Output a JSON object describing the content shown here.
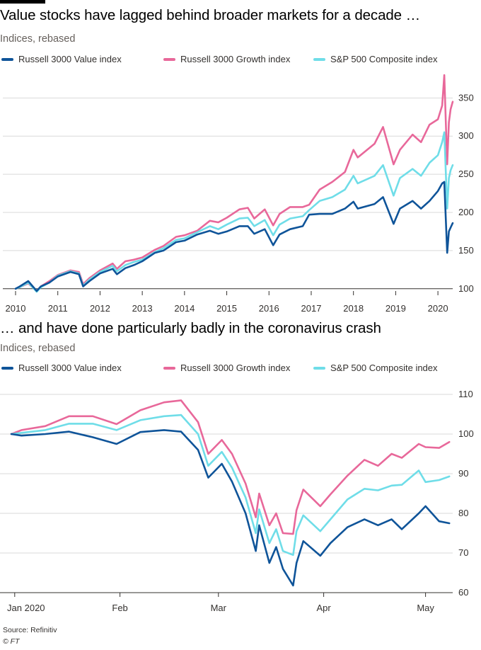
{
  "colors": {
    "value": "#0f5499",
    "growth": "#e8689a",
    "sp500": "#6fdde8",
    "grid": "#d9d9d9",
    "axis": "#33302e"
  },
  "chart_data": [
    {
      "type": "line",
      "title": "Value stocks have lagged behind broader markets for a decade …",
      "subtitle": "Indices, rebased",
      "x_axis_type": "year",
      "x_ticks": [
        "2010",
        "2011",
        "2012",
        "2013",
        "2014",
        "2015",
        "2016",
        "2017",
        "2018",
        "2019",
        "2020"
      ],
      "xlim": [
        2010.0,
        2020.35
      ],
      "ylim": [
        97,
        380
      ],
      "y_ticks": [
        100,
        150,
        200,
        250,
        300,
        350
      ],
      "y_axis_side": "right",
      "grid": true,
      "legend_position": "top",
      "series": [
        {
          "name": "Russell 3000 Value index",
          "color_key": "value",
          "x": [
            2010.0,
            2010.1,
            2010.3,
            2010.5,
            2010.6,
            2010.8,
            2011.0,
            2011.3,
            2011.5,
            2011.6,
            2011.75,
            2012.0,
            2012.3,
            2012.4,
            2012.6,
            2012.8,
            2013.0,
            2013.3,
            2013.5,
            2013.8,
            2014.0,
            2014.3,
            2014.6,
            2014.8,
            2015.0,
            2015.3,
            2015.5,
            2015.65,
            2015.9,
            2016.1,
            2016.25,
            2016.5,
            2016.8,
            2016.95,
            2017.2,
            2017.5,
            2017.8,
            2018.0,
            2018.1,
            2018.5,
            2018.7,
            2018.95,
            2019.1,
            2019.4,
            2019.6,
            2019.8,
            2020.0,
            2020.1,
            2020.15,
            2020.22,
            2020.26,
            2020.3,
            2020.35
          ],
          "values": [
            100,
            103,
            110,
            97,
            103,
            108,
            116,
            122,
            119,
            103,
            110,
            120,
            126,
            119,
            127,
            131,
            136,
            147,
            150,
            161,
            163,
            171,
            176,
            172,
            175,
            182,
            182,
            172,
            178,
            157,
            171,
            178,
            182,
            197,
            198,
            198,
            205,
            214,
            205,
            211,
            220,
            185,
            205,
            215,
            205,
            215,
            228,
            238,
            240,
            147,
            175,
            180,
            186
          ]
        },
        {
          "name": "Russell 3000 Growth index",
          "color_key": "growth",
          "x": [
            2010.0,
            2010.1,
            2010.3,
            2010.5,
            2010.6,
            2010.8,
            2011.0,
            2011.3,
            2011.5,
            2011.6,
            2011.75,
            2012.0,
            2012.3,
            2012.4,
            2012.6,
            2012.8,
            2013.0,
            2013.3,
            2013.5,
            2013.8,
            2014.0,
            2014.3,
            2014.6,
            2014.8,
            2015.0,
            2015.3,
            2015.5,
            2015.65,
            2015.9,
            2016.1,
            2016.25,
            2016.5,
            2016.8,
            2016.95,
            2017.2,
            2017.5,
            2017.8,
            2018.0,
            2018.1,
            2018.5,
            2018.7,
            2018.95,
            2019.1,
            2019.4,
            2019.6,
            2019.8,
            2020.0,
            2020.1,
            2020.15,
            2020.22,
            2020.26,
            2020.3,
            2020.35
          ],
          "values": [
            100,
            102,
            107,
            97,
            103,
            110,
            118,
            124,
            122,
            106,
            114,
            124,
            133,
            126,
            136,
            138,
            141,
            151,
            156,
            168,
            170,
            176,
            189,
            187,
            193,
            204,
            206,
            192,
            204,
            183,
            198,
            207,
            207,
            210,
            230,
            240,
            253,
            282,
            272,
            290,
            312,
            263,
            282,
            302,
            292,
            315,
            322,
            340,
            380,
            263,
            318,
            335,
            345
          ]
        },
        {
          "name": "S&P 500 Composite index",
          "color_key": "sp500",
          "x": [
            2010.0,
            2010.1,
            2010.3,
            2010.5,
            2010.6,
            2010.8,
            2011.0,
            2011.3,
            2011.5,
            2011.6,
            2011.75,
            2012.0,
            2012.3,
            2012.4,
            2012.6,
            2012.8,
            2013.0,
            2013.3,
            2013.5,
            2013.8,
            2014.0,
            2014.3,
            2014.6,
            2014.8,
            2015.0,
            2015.3,
            2015.5,
            2015.65,
            2015.9,
            2016.1,
            2016.25,
            2016.5,
            2016.8,
            2016.95,
            2017.2,
            2017.5,
            2017.8,
            2018.0,
            2018.1,
            2018.5,
            2018.7,
            2018.95,
            2019.1,
            2019.4,
            2019.6,
            2019.8,
            2020.0,
            2020.1,
            2020.15,
            2020.22,
            2020.26,
            2020.3,
            2020.35
          ],
          "values": [
            100,
            102,
            108,
            96,
            102,
            108,
            117,
            123,
            120,
            104,
            112,
            122,
            130,
            123,
            131,
            135,
            138,
            148,
            153,
            164,
            166,
            174,
            182,
            178,
            184,
            192,
            193,
            182,
            190,
            170,
            184,
            192,
            195,
            203,
            215,
            220,
            230,
            248,
            238,
            248,
            262,
            222,
            245,
            257,
            248,
            265,
            275,
            292,
            305,
            205,
            245,
            255,
            262
          ]
        }
      ]
    },
    {
      "type": "line",
      "title": "… and have done particularly badly in the coronavirus crash",
      "subtitle": "Indices, rebased",
      "x_axis_type": "date",
      "x_ticks": [
        "Jan 2020",
        "Feb",
        "Mar",
        "Apr",
        "May"
      ],
      "x_tick_dates": [
        "2020-01-01",
        "2020-02-01",
        "2020-03-01",
        "2020-04-01",
        "2020-05-01"
      ],
      "xlim": [
        "2019-12-31",
        "2020-05-09"
      ],
      "ylim": [
        60,
        110
      ],
      "y_ticks": [
        60,
        70,
        80,
        90,
        100,
        110
      ],
      "y_axis_side": "right",
      "grid": true,
      "legend_position": "top",
      "series": [
        {
          "name": "Russell 3000 Value index",
          "color_key": "value",
          "x": [
            "2019-12-31",
            "2020-01-03",
            "2020-01-10",
            "2020-01-17",
            "2020-01-24",
            "2020-01-31",
            "2020-02-07",
            "2020-02-14",
            "2020-02-19",
            "2020-02-24",
            "2020-02-27",
            "2020-03-02",
            "2020-03-05",
            "2020-03-09",
            "2020-03-12",
            "2020-03-13",
            "2020-03-16",
            "2020-03-18",
            "2020-03-20",
            "2020-03-23",
            "2020-03-24",
            "2020-03-26",
            "2020-03-31",
            "2020-04-03",
            "2020-04-08",
            "2020-04-13",
            "2020-04-17",
            "2020-04-21",
            "2020-04-24",
            "2020-04-29",
            "2020-05-01",
            "2020-05-05",
            "2020-05-08"
          ],
          "values": [
            100,
            99.6,
            100,
            100.6,
            99.2,
            97.5,
            100.5,
            101,
            100.6,
            96,
            89,
            92.5,
            88,
            80,
            70.5,
            77,
            67.5,
            71.5,
            66,
            61.8,
            67.5,
            73,
            69.3,
            72.5,
            76.5,
            78.5,
            77,
            78.5,
            76,
            80,
            81.8,
            78,
            77.5
          ]
        },
        {
          "name": "Russell 3000 Growth index",
          "color_key": "growth",
          "x": [
            "2019-12-31",
            "2020-01-03",
            "2020-01-10",
            "2020-01-17",
            "2020-01-24",
            "2020-01-31",
            "2020-02-07",
            "2020-02-14",
            "2020-02-19",
            "2020-02-24",
            "2020-02-27",
            "2020-03-02",
            "2020-03-05",
            "2020-03-09",
            "2020-03-12",
            "2020-03-13",
            "2020-03-16",
            "2020-03-18",
            "2020-03-20",
            "2020-03-23",
            "2020-03-24",
            "2020-03-26",
            "2020-03-31",
            "2020-04-03",
            "2020-04-08",
            "2020-04-13",
            "2020-04-17",
            "2020-04-21",
            "2020-04-24",
            "2020-04-29",
            "2020-05-01",
            "2020-05-05",
            "2020-05-08"
          ],
          "values": [
            100,
            101,
            102,
            104.5,
            104.5,
            102.5,
            106,
            108,
            108.5,
            103,
            95,
            98.5,
            95,
            87.5,
            79,
            85,
            77,
            80,
            75,
            74.8,
            80.8,
            86,
            81.8,
            84.8,
            89.5,
            93.5,
            92,
            95,
            94,
            97.5,
            96.7,
            96.5,
            98
          ]
        },
        {
          "name": "S&P 500 Composite index",
          "color_key": "sp500",
          "x": [
            "2019-12-31",
            "2020-01-03",
            "2020-01-10",
            "2020-01-17",
            "2020-01-24",
            "2020-01-31",
            "2020-02-07",
            "2020-02-14",
            "2020-02-19",
            "2020-02-24",
            "2020-02-27",
            "2020-03-02",
            "2020-03-05",
            "2020-03-09",
            "2020-03-12",
            "2020-03-13",
            "2020-03-16",
            "2020-03-18",
            "2020-03-20",
            "2020-03-23",
            "2020-03-24",
            "2020-03-26",
            "2020-03-31",
            "2020-04-03",
            "2020-04-08",
            "2020-04-13",
            "2020-04-17",
            "2020-04-21",
            "2020-04-24",
            "2020-04-29",
            "2020-05-01",
            "2020-05-05",
            "2020-05-08"
          ],
          "values": [
            100,
            100.3,
            101,
            102.6,
            102.6,
            101,
            103.5,
            104.5,
            104.8,
            100,
            92,
            95.5,
            91.5,
            84,
            75,
            81,
            72.5,
            76,
            70.5,
            69.5,
            75.5,
            79.5,
            75.5,
            78.5,
            83.5,
            86.2,
            85.8,
            87,
            87.2,
            90.8,
            87.9,
            88.4,
            89.3
          ]
        }
      ]
    }
  ],
  "footer": {
    "source": "Source: Refinitiv",
    "credit": "© FT"
  }
}
